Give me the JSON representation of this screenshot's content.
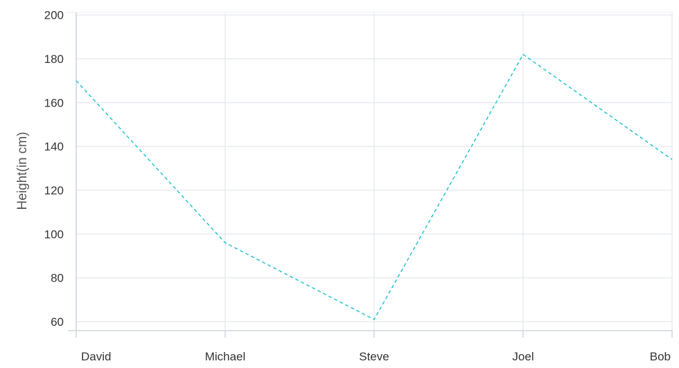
{
  "chart_data": {
    "type": "line",
    "title": "",
    "xlabel": "",
    "ylabel": "Height(in cm)",
    "categories": [
      "David",
      "Michael",
      "Steve",
      "Joel",
      "Bob"
    ],
    "series": [
      {
        "values": [
          170,
          96,
          61,
          182,
          134
        ]
      }
    ],
    "ylim": [
      55,
      205
    ],
    "yticks": [
      60,
      80,
      100,
      120,
      140,
      160,
      180,
      200
    ],
    "grid": true,
    "line_style": "dashed",
    "colors": {
      "line": "#17becf",
      "grid": "#e8ecf0",
      "axis": "#cfd5db"
    }
  }
}
